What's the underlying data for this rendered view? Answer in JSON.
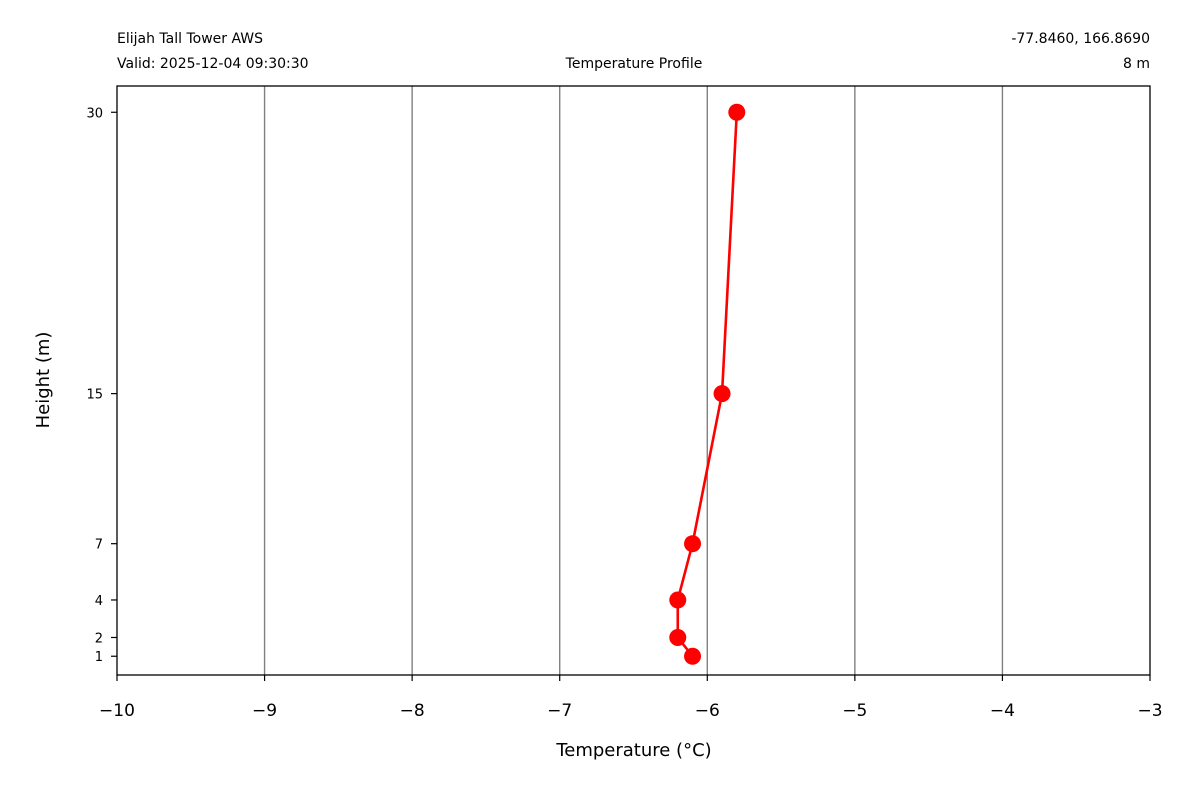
{
  "header": {
    "station": "Elijah Tall Tower AWS",
    "valid": "Valid: 2025-12-04 09:30:30",
    "plot_title": "Temperature Profile",
    "coords": "-77.8460, 166.8690",
    "elevation": "8 m"
  },
  "chart_data": {
    "type": "line",
    "xlabel": "Temperature (°C)",
    "ylabel": "Height (m)",
    "xlim": [
      -10,
      -3
    ],
    "ylim": [
      0,
      31.4
    ],
    "grid": "vertical",
    "x_ticks": [
      -10,
      -9,
      -8,
      -7,
      -6,
      -5,
      -4,
      -3
    ],
    "x_tick_labels": [
      "−10",
      "−9",
      "−8",
      "−7",
      "−6",
      "−5",
      "−4",
      "−3"
    ],
    "y_ticks": [
      1,
      2,
      4,
      7,
      15,
      30
    ],
    "y_tick_labels": [
      "1",
      "2",
      "4",
      "7",
      "15",
      "30"
    ],
    "series": [
      {
        "color": "#ff0000",
        "points": [
          {
            "temperature": -6.1,
            "height": 1
          },
          {
            "temperature": -6.2,
            "height": 2
          },
          {
            "temperature": -6.2,
            "height": 4
          },
          {
            "temperature": -6.1,
            "height": 7
          },
          {
            "temperature": -5.9,
            "height": 15
          },
          {
            "temperature": -5.8,
            "height": 30
          }
        ]
      }
    ]
  }
}
